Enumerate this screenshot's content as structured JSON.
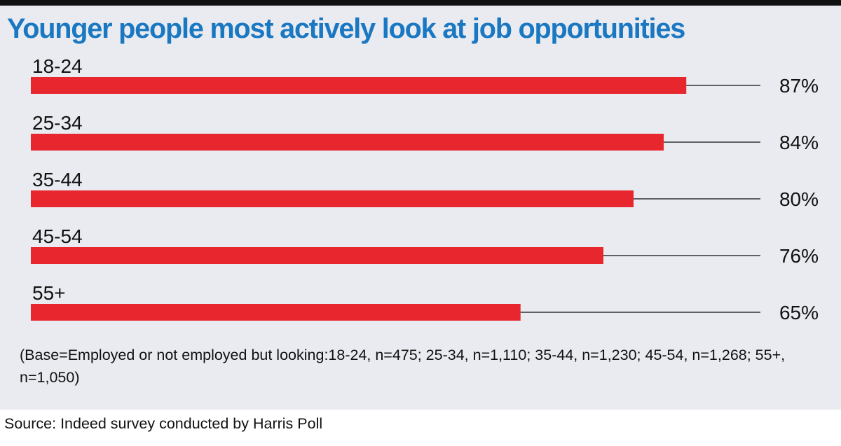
{
  "colors": {
    "title": "#1a78c2",
    "bar": "#e8262d",
    "panel_background": "#e9ebf0",
    "leader_line": "#333333",
    "text": "#111111"
  },
  "chart_data": {
    "type": "bar",
    "orientation": "horizontal",
    "title": "Younger people most actively look at job opportunities",
    "categories": [
      "18-24",
      "25-34",
      "35-44",
      "45-54",
      "55+"
    ],
    "values": [
      87,
      84,
      80,
      76,
      65
    ],
    "value_labels": [
      "87%",
      "84%",
      "80%",
      "76%",
      "65%"
    ],
    "unit": "%",
    "xlim": [
      0,
      100
    ],
    "grid": false,
    "legend": "none"
  },
  "notes": {
    "base": "(Base=Employed or not employed but looking:18-24, n=475; 25-34, n=1,110; 35-44, n=1,230; 45-54, n=1,268; 55+, n=1,050)",
    "source": "Source: Indeed survey conducted by Harris Poll"
  }
}
